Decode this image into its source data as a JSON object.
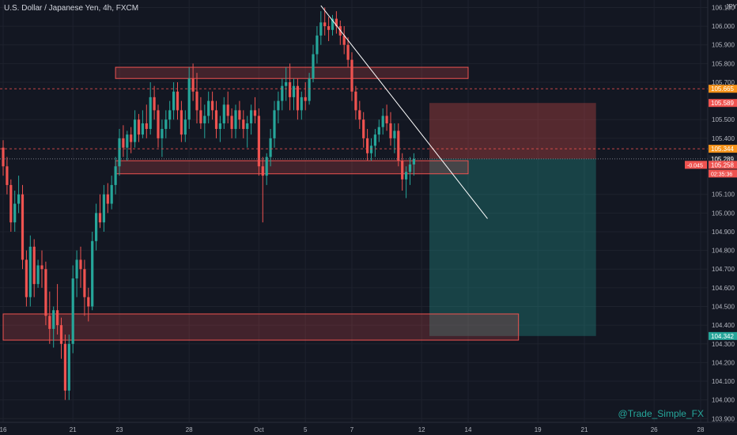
{
  "header": {
    "symbol_title": "U.S. Dollar / Japanese Yen, 4h, FXCM",
    "currency": "JPY"
  },
  "watermark": "@Trade_Simple_FX",
  "chart_data": {
    "type": "candlestick",
    "symbol": "USDJPY",
    "timeframe": "4h",
    "ylim": [
      103.88,
      106.14
    ],
    "y_ticks": [
      {
        "value": 106.1,
        "label": "106.100"
      },
      {
        "value": 106.0,
        "label": "106.000"
      },
      {
        "value": 105.9,
        "label": "105.900"
      },
      {
        "value": 105.8,
        "label": "105.800"
      },
      {
        "value": 105.7,
        "label": "105.700"
      },
      {
        "value": 105.5,
        "label": "105.500"
      },
      {
        "value": 105.4,
        "label": "105.400"
      },
      {
        "value": 105.1,
        "label": "105.100"
      },
      {
        "value": 105.0,
        "label": "105.000"
      },
      {
        "value": 104.9,
        "label": "104.900"
      },
      {
        "value": 104.8,
        "label": "104.800"
      },
      {
        "value": 104.7,
        "label": "104.700"
      },
      {
        "value": 104.6,
        "label": "104.600"
      },
      {
        "value": 104.5,
        "label": "104.500"
      },
      {
        "value": 104.4,
        "label": "104.400"
      },
      {
        "value": 104.3,
        "label": "104.300"
      },
      {
        "value": 104.2,
        "label": "104.200"
      },
      {
        "value": 104.1,
        "label": "104.100"
      },
      {
        "value": 104.0,
        "label": "104.000"
      },
      {
        "value": 103.9,
        "label": "103.900"
      }
    ],
    "x_ticks": [
      {
        "label": "16",
        "index": 0
      },
      {
        "label": "21",
        "index": 18
      },
      {
        "label": "23",
        "index": 30
      },
      {
        "label": "28",
        "index": 48
      },
      {
        "label": "Oct",
        "index": 66
      },
      {
        "label": "5",
        "index": 78
      },
      {
        "label": "7",
        "index": 90
      },
      {
        "label": "12",
        "index": 108
      },
      {
        "label": "14",
        "index": 120
      },
      {
        "label": "19",
        "index": 138
      },
      {
        "label": "21",
        "index": 150
      },
      {
        "label": "26",
        "index": 168
      },
      {
        "label": "28",
        "index": 180
      }
    ],
    "price_labels": [
      {
        "value": 105.665,
        "label": "105.665",
        "color": "#f7931a"
      },
      {
        "value": 105.589,
        "label": "105.589",
        "color": "#ef5350"
      },
      {
        "value": 105.344,
        "label": "105.344",
        "color": "#f7931a"
      },
      {
        "value": 105.289,
        "label": "105.289",
        "color": "#1e222d"
      },
      {
        "value": 105.258,
        "label": "105.258",
        "color": "#ef5350"
      },
      {
        "value": 104.342,
        "label": "104.342",
        "color": "#26a69a"
      }
    ],
    "current_price_change": "-0.045",
    "countdown": "02:35:36",
    "candles": [
      {
        "o": 105.35,
        "h": 105.39,
        "l": 105.2,
        "c": 105.25
      },
      {
        "o": 105.25,
        "h": 105.3,
        "l": 105.1,
        "c": 105.15
      },
      {
        "o": 105.15,
        "h": 105.18,
        "l": 104.9,
        "c": 104.95
      },
      {
        "o": 104.95,
        "h": 105.12,
        "l": 104.9,
        "c": 105.05
      },
      {
        "o": 105.05,
        "h": 105.2,
        "l": 105.0,
        "c": 105.1
      },
      {
        "o": 105.1,
        "h": 105.15,
        "l": 104.7,
        "c": 104.75
      },
      {
        "o": 104.75,
        "h": 104.8,
        "l": 104.5,
        "c": 104.55
      },
      {
        "o": 104.55,
        "h": 104.88,
        "l": 104.5,
        "c": 104.82
      },
      {
        "o": 104.82,
        "h": 104.86,
        "l": 104.55,
        "c": 104.62
      },
      {
        "o": 104.62,
        "h": 104.75,
        "l": 104.6,
        "c": 104.72
      },
      {
        "o": 104.72,
        "h": 104.8,
        "l": 104.6,
        "c": 104.7
      },
      {
        "o": 104.7,
        "h": 104.74,
        "l": 104.4,
        "c": 104.45
      },
      {
        "o": 104.45,
        "h": 104.58,
        "l": 104.3,
        "c": 104.38
      },
      {
        "o": 104.38,
        "h": 104.5,
        "l": 104.28,
        "c": 104.48
      },
      {
        "o": 104.48,
        "h": 104.62,
        "l": 104.35,
        "c": 104.4
      },
      {
        "o": 104.4,
        "h": 104.44,
        "l": 104.22,
        "c": 104.3
      },
      {
        "o": 104.3,
        "h": 104.35,
        "l": 104.0,
        "c": 104.05
      },
      {
        "o": 104.05,
        "h": 104.35,
        "l": 104.0,
        "c": 104.3
      },
      {
        "o": 104.3,
        "h": 104.72,
        "l": 104.25,
        "c": 104.65
      },
      {
        "o": 104.65,
        "h": 104.8,
        "l": 104.55,
        "c": 104.75
      },
      {
        "o": 104.75,
        "h": 104.82,
        "l": 104.6,
        "c": 104.7
      },
      {
        "o": 104.7,
        "h": 104.75,
        "l": 104.45,
        "c": 104.55
      },
      {
        "o": 104.55,
        "h": 104.6,
        "l": 104.42,
        "c": 104.5
      },
      {
        "o": 104.5,
        "h": 104.9,
        "l": 104.48,
        "c": 104.85
      },
      {
        "o": 104.85,
        "h": 105.05,
        "l": 104.8,
        "c": 105.0
      },
      {
        "o": 105.0,
        "h": 105.1,
        "l": 104.92,
        "c": 104.95
      },
      {
        "o": 104.95,
        "h": 105.15,
        "l": 104.9,
        "c": 105.1
      },
      {
        "o": 105.1,
        "h": 105.16,
        "l": 105.0,
        "c": 105.05
      },
      {
        "o": 105.05,
        "h": 105.2,
        "l": 105.02,
        "c": 105.15
      },
      {
        "o": 105.15,
        "h": 105.3,
        "l": 105.1,
        "c": 105.25
      },
      {
        "o": 105.25,
        "h": 105.45,
        "l": 105.2,
        "c": 105.4
      },
      {
        "o": 105.4,
        "h": 105.47,
        "l": 105.3,
        "c": 105.35
      },
      {
        "o": 105.35,
        "h": 105.44,
        "l": 105.28,
        "c": 105.42
      },
      {
        "o": 105.42,
        "h": 105.46,
        "l": 105.32,
        "c": 105.38
      },
      {
        "o": 105.38,
        "h": 105.55,
        "l": 105.35,
        "c": 105.5
      },
      {
        "o": 105.5,
        "h": 105.53,
        "l": 105.38,
        "c": 105.42
      },
      {
        "o": 105.42,
        "h": 105.55,
        "l": 105.4,
        "c": 105.48
      },
      {
        "o": 105.48,
        "h": 105.58,
        "l": 105.4,
        "c": 105.45
      },
      {
        "o": 105.45,
        "h": 105.7,
        "l": 105.42,
        "c": 105.62
      },
      {
        "o": 105.62,
        "h": 105.68,
        "l": 105.5,
        "c": 105.55
      },
      {
        "o": 105.55,
        "h": 105.58,
        "l": 105.35,
        "c": 105.4
      },
      {
        "o": 105.4,
        "h": 105.5,
        "l": 105.3,
        "c": 105.45
      },
      {
        "o": 105.45,
        "h": 105.55,
        "l": 105.4,
        "c": 105.5
      },
      {
        "o": 105.5,
        "h": 105.6,
        "l": 105.45,
        "c": 105.55
      },
      {
        "o": 105.55,
        "h": 105.7,
        "l": 105.5,
        "c": 105.65
      },
      {
        "o": 105.65,
        "h": 105.7,
        "l": 105.5,
        "c": 105.55
      },
      {
        "o": 105.55,
        "h": 105.6,
        "l": 105.38,
        "c": 105.42
      },
      {
        "o": 105.42,
        "h": 105.55,
        "l": 105.38,
        "c": 105.5
      },
      {
        "o": 105.5,
        "h": 105.78,
        "l": 105.45,
        "c": 105.72
      },
      {
        "o": 105.72,
        "h": 105.8,
        "l": 105.6,
        "c": 105.65
      },
      {
        "o": 105.65,
        "h": 105.75,
        "l": 105.48,
        "c": 105.55
      },
      {
        "o": 105.55,
        "h": 105.62,
        "l": 105.45,
        "c": 105.48
      },
      {
        "o": 105.48,
        "h": 105.58,
        "l": 105.4,
        "c": 105.52
      },
      {
        "o": 105.52,
        "h": 105.65,
        "l": 105.48,
        "c": 105.6
      },
      {
        "o": 105.6,
        "h": 105.65,
        "l": 105.5,
        "c": 105.55
      },
      {
        "o": 105.55,
        "h": 105.6,
        "l": 105.4,
        "c": 105.45
      },
      {
        "o": 105.45,
        "h": 105.52,
        "l": 105.38,
        "c": 105.48
      },
      {
        "o": 105.48,
        "h": 105.62,
        "l": 105.45,
        "c": 105.58
      },
      {
        "o": 105.58,
        "h": 105.65,
        "l": 105.48,
        "c": 105.52
      },
      {
        "o": 105.52,
        "h": 105.56,
        "l": 105.4,
        "c": 105.45
      },
      {
        "o": 105.45,
        "h": 105.58,
        "l": 105.4,
        "c": 105.55
      },
      {
        "o": 105.55,
        "h": 105.6,
        "l": 105.45,
        "c": 105.5
      },
      {
        "o": 105.5,
        "h": 105.55,
        "l": 105.4,
        "c": 105.45
      },
      {
        "o": 105.45,
        "h": 105.52,
        "l": 105.35,
        "c": 105.48
      },
      {
        "o": 105.48,
        "h": 105.58,
        "l": 105.42,
        "c": 105.55
      },
      {
        "o": 105.55,
        "h": 105.62,
        "l": 105.48,
        "c": 105.52
      },
      {
        "o": 105.52,
        "h": 105.56,
        "l": 105.2,
        "c": 105.25
      },
      {
        "o": 105.25,
        "h": 105.3,
        "l": 104.95,
        "c": 105.2
      },
      {
        "o": 105.2,
        "h": 105.32,
        "l": 105.15,
        "c": 105.3
      },
      {
        "o": 105.3,
        "h": 105.45,
        "l": 105.25,
        "c": 105.4
      },
      {
        "o": 105.4,
        "h": 105.6,
        "l": 105.35,
        "c": 105.55
      },
      {
        "o": 105.55,
        "h": 105.65,
        "l": 105.48,
        "c": 105.6
      },
      {
        "o": 105.6,
        "h": 105.72,
        "l": 105.55,
        "c": 105.68
      },
      {
        "o": 105.68,
        "h": 105.78,
        "l": 105.6,
        "c": 105.7
      },
      {
        "o": 105.7,
        "h": 105.8,
        "l": 105.55,
        "c": 105.62
      },
      {
        "o": 105.62,
        "h": 105.72,
        "l": 105.55,
        "c": 105.68
      },
      {
        "o": 105.68,
        "h": 105.72,
        "l": 105.5,
        "c": 105.55
      },
      {
        "o": 105.55,
        "h": 105.65,
        "l": 105.5,
        "c": 105.62
      },
      {
        "o": 105.62,
        "h": 105.7,
        "l": 105.55,
        "c": 105.6
      },
      {
        "o": 105.6,
        "h": 105.75,
        "l": 105.58,
        "c": 105.72
      },
      {
        "o": 105.72,
        "h": 105.9,
        "l": 105.7,
        "c": 105.85
      },
      {
        "o": 105.85,
        "h": 106.0,
        "l": 105.8,
        "c": 105.95
      },
      {
        "o": 105.95,
        "h": 106.08,
        "l": 105.9,
        "c": 106.02
      },
      {
        "o": 106.02,
        "h": 106.1,
        "l": 105.95,
        "c": 106.0
      },
      {
        "o": 106.0,
        "h": 106.05,
        "l": 105.92,
        "c": 105.98
      },
      {
        "o": 105.98,
        "h": 106.06,
        "l": 105.95,
        "c": 106.04
      },
      {
        "o": 106.04,
        "h": 106.08,
        "l": 105.96,
        "c": 106.0
      },
      {
        "o": 106.0,
        "h": 106.03,
        "l": 105.9,
        "c": 105.95
      },
      {
        "o": 105.95,
        "h": 106.0,
        "l": 105.85,
        "c": 105.9
      },
      {
        "o": 105.9,
        "h": 105.94,
        "l": 105.78,
        "c": 105.82
      },
      {
        "o": 105.82,
        "h": 105.86,
        "l": 105.6,
        "c": 105.65
      },
      {
        "o": 105.65,
        "h": 105.68,
        "l": 105.5,
        "c": 105.55
      },
      {
        "o": 105.55,
        "h": 105.6,
        "l": 105.45,
        "c": 105.5
      },
      {
        "o": 105.5,
        "h": 105.54,
        "l": 105.35,
        "c": 105.4
      },
      {
        "o": 105.4,
        "h": 105.45,
        "l": 105.28,
        "c": 105.32
      },
      {
        "o": 105.32,
        "h": 105.4,
        "l": 105.28,
        "c": 105.36
      },
      {
        "o": 105.36,
        "h": 105.45,
        "l": 105.3,
        "c": 105.42
      },
      {
        "o": 105.42,
        "h": 105.5,
        "l": 105.38,
        "c": 105.46
      },
      {
        "o": 105.46,
        "h": 105.56,
        "l": 105.42,
        "c": 105.52
      },
      {
        "o": 105.52,
        "h": 105.58,
        "l": 105.44,
        "c": 105.48
      },
      {
        "o": 105.48,
        "h": 105.54,
        "l": 105.36,
        "c": 105.4
      },
      {
        "o": 105.4,
        "h": 105.48,
        "l": 105.32,
        "c": 105.44
      },
      {
        "o": 105.44,
        "h": 105.48,
        "l": 105.25,
        "c": 105.28
      },
      {
        "o": 105.28,
        "h": 105.32,
        "l": 105.12,
        "c": 105.18
      },
      {
        "o": 105.18,
        "h": 105.25,
        "l": 105.08,
        "c": 105.22
      },
      {
        "o": 105.22,
        "h": 105.3,
        "l": 105.15,
        "c": 105.26
      },
      {
        "o": 105.26,
        "h": 105.32,
        "l": 105.2,
        "c": 105.29
      }
    ]
  },
  "drawings": {
    "resistance_zone": {
      "top": 105.78,
      "bottom": 105.72,
      "start_index": 29,
      "end_index": 120
    },
    "support_zone": {
      "top": 105.28,
      "bottom": 105.21,
      "start_index": 29,
      "end_index": 120
    },
    "demand_zone": {
      "top": 104.46,
      "bottom": 104.32,
      "start_index": 0,
      "end_index": 133
    },
    "trendline": {
      "x1": 82,
      "y1": 106.11,
      "x2": 125,
      "y2": 104.97
    },
    "position": {
      "start_index": 110,
      "end_index": 153,
      "entry": 105.29,
      "stop": 105.589,
      "target": 104.342
    },
    "dashed_levels": [
      105.665,
      105.344
    ]
  }
}
